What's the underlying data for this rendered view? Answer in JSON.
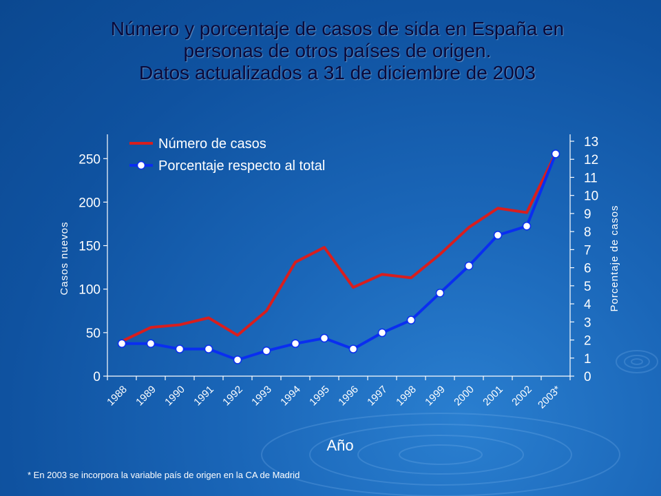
{
  "slide": {
    "title_lines": [
      "Número y porcentaje de casos de sida en España en",
      "personas de otros países de origen.",
      "Datos actualizados a 31 de diciembre de 2003"
    ],
    "footnote": "* En 2003 se incorpora la variable país de origen en la CA de Madrid"
  },
  "colors": {
    "series_cases": "#d81e1e",
    "series_percent": "#0a2ef0",
    "text": "#ffffff",
    "title": "#0a0a3a"
  },
  "chart_data": {
    "type": "line",
    "xlabel": "Año",
    "ylabel": "Casos nuevos",
    "y2label": "Porcentaje de casos",
    "categories": [
      "1988",
      "1989",
      "1990",
      "1991",
      "1992",
      "1993",
      "1994",
      "1995",
      "1996",
      "1997",
      "1998",
      "1999",
      "2000",
      "2001",
      "2002",
      "2003*"
    ],
    "ylim": [
      0,
      270
    ],
    "yticks": [
      0,
      50,
      100,
      150,
      200,
      250
    ],
    "y2lim": [
      0,
      13
    ],
    "y2ticks": [
      0,
      1,
      2,
      3,
      4,
      5,
      6,
      7,
      8,
      9,
      10,
      11,
      12,
      13
    ],
    "grid": false,
    "legend_position": "top-left",
    "series": [
      {
        "name": "Número de casos",
        "axis": "left",
        "values": [
          40,
          56,
          59,
          67,
          47,
          75,
          131,
          148,
          102,
          117,
          113,
          140,
          171,
          193,
          188,
          256
        ]
      },
      {
        "name": "Porcentaje respecto al total",
        "axis": "right",
        "markers": true,
        "values": [
          1.8,
          1.8,
          1.5,
          1.5,
          0.9,
          1.4,
          1.8,
          2.1,
          1.5,
          2.4,
          3.1,
          4.6,
          6.1,
          7.8,
          8.3,
          12.3
        ]
      }
    ]
  }
}
